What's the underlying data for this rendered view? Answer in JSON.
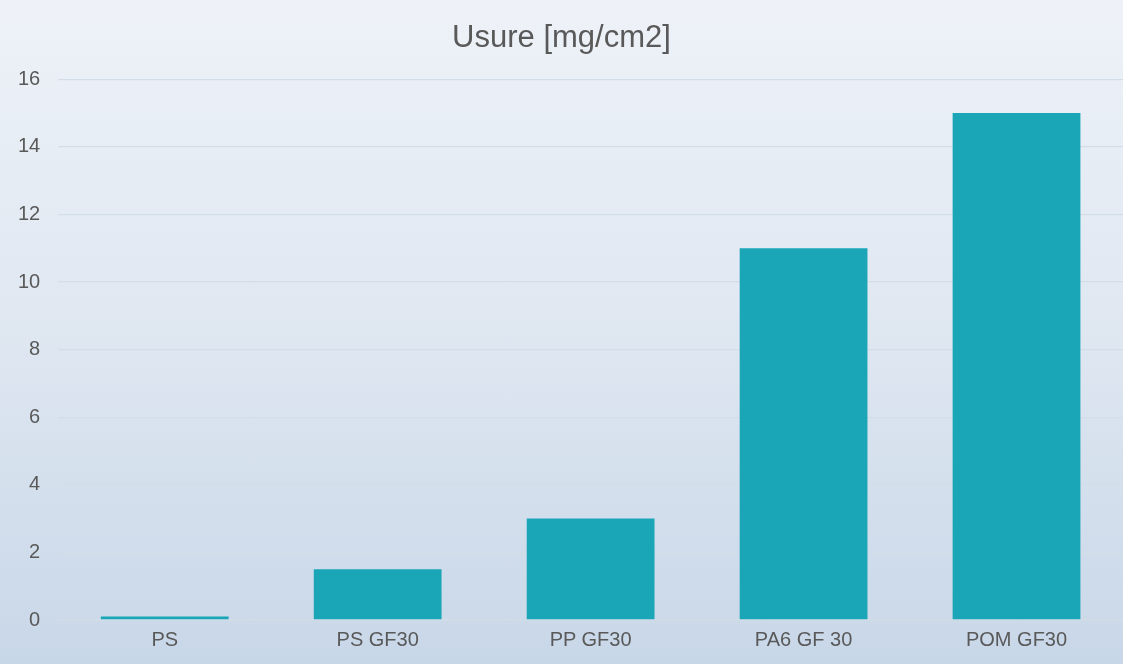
{
  "chart_data": {
    "type": "bar",
    "title": "Usure [mg/cm2]",
    "categories": [
      "PS",
      "PS GF30",
      "PP GF30",
      "PA6 GF 30",
      "POM GF30"
    ],
    "values": [
      0.1,
      1.5,
      3,
      11,
      15
    ],
    "color": "#1aa6b7",
    "ylim": [
      0,
      16
    ],
    "yticks": [
      0,
      2,
      4,
      6,
      8,
      10,
      12,
      14,
      16
    ],
    "grid": "y"
  }
}
